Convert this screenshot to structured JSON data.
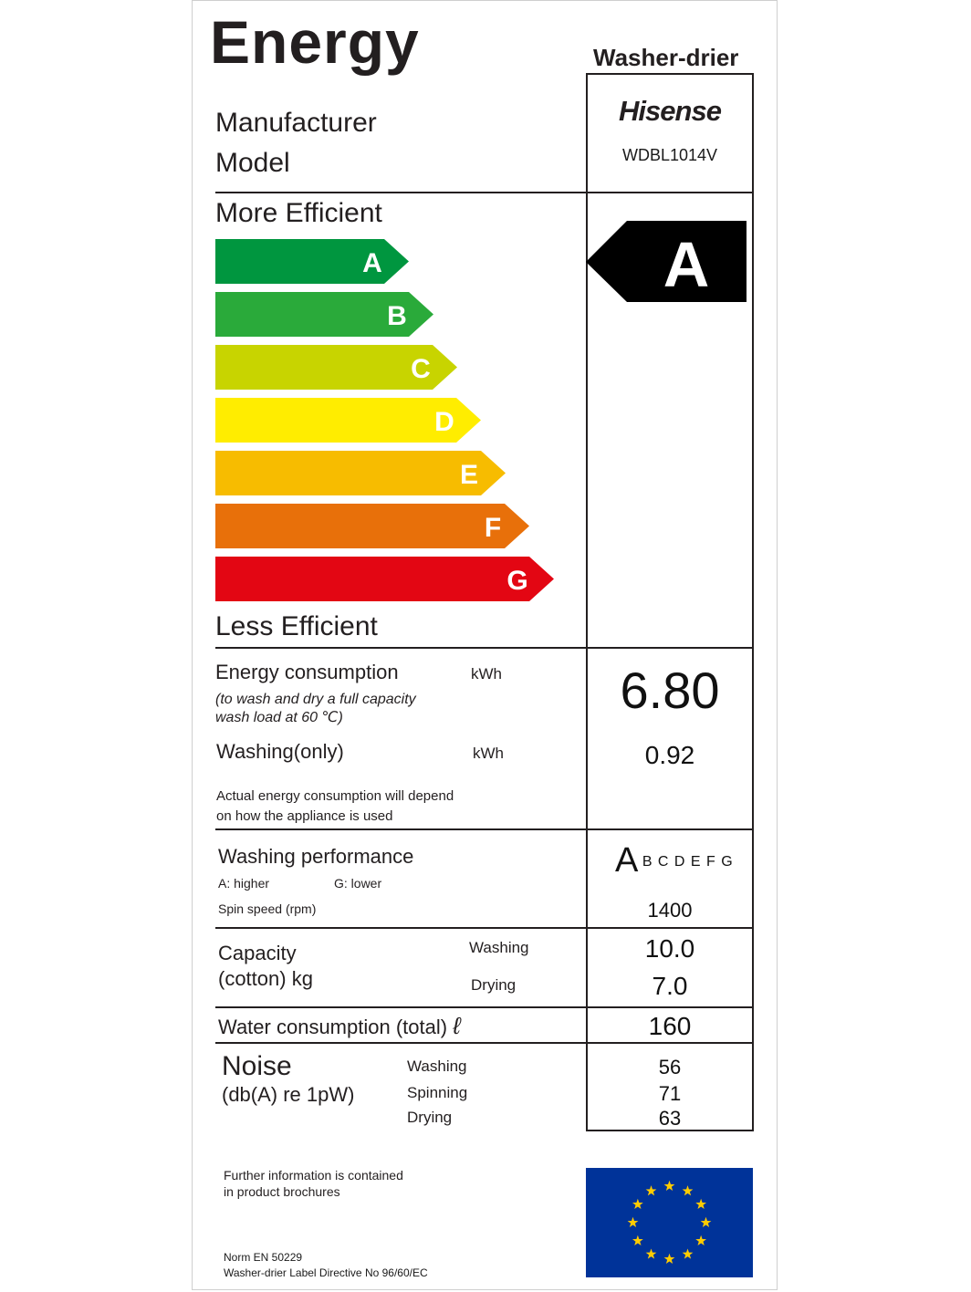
{
  "header": {
    "title": "Energy",
    "appliance_type": "Washer-drier"
  },
  "identity": {
    "manufacturer_label": "Manufacturer",
    "model_label": "Model",
    "manufacturer": "Hisense",
    "model": "WDBL1014V"
  },
  "scale": {
    "more_efficient": "More Efficient",
    "less_efficient": "Less Efficient",
    "classes": [
      {
        "letter": "A",
        "color": "#00963f"
      },
      {
        "letter": "B",
        "color": "#2aaa3a"
      },
      {
        "letter": "C",
        "color": "#c8d400"
      },
      {
        "letter": "D",
        "color": "#ffed00"
      },
      {
        "letter": "E",
        "color": "#f7bc00"
      },
      {
        "letter": "F",
        "color": "#e8700a"
      },
      {
        "letter": "G",
        "color": "#e30613"
      }
    ],
    "rating": "A"
  },
  "energy": {
    "consumption_label": "Energy consumption",
    "unit": "kWh",
    "note_line1": "(to wash and dry a full capacity",
    "note_line2": " wash load at 60 ℃)",
    "consumption_value": "6.80",
    "washing_label": "Washing(only)",
    "washing_unit": "kWh",
    "washing_value": "0.92",
    "actual_line1": "Actual energy consumption will depend",
    "actual_line2": "on how the appliance is used"
  },
  "performance": {
    "label": "Washing performance",
    "higher": "A: higher",
    "lower": "G: lower",
    "rating_big": "A",
    "rating_rest": "B C D E F G",
    "spin_label": "Spin speed (rpm)",
    "spin_value": "1400"
  },
  "capacity": {
    "label_line1": "Capacity",
    "label_line2": "(cotton) kg",
    "washing_label": "Washing",
    "drying_label": "Drying",
    "washing_value": "10.0",
    "drying_value": "7.0"
  },
  "water": {
    "label": "Water consumption (total)",
    "unit": "ℓ",
    "value": "160"
  },
  "noise": {
    "label": "Noise",
    "unit": "(db(A) re 1pW)",
    "washing_label": "Washing",
    "spinning_label": "Spinning",
    "drying_label": "Drying",
    "washing_value": "56",
    "spinning_value": "71",
    "drying_value": "63"
  },
  "footer": {
    "info_line1": "Further information is contained",
    "info_line2": "in product brochures",
    "norm": "Norm EN 50229",
    "directive": "Washer-drier Label Directive No 96/60/EC"
  },
  "eu_flag": {
    "icon": "eu-flag-icon",
    "blue": "#003399",
    "star": "#ffcc00"
  }
}
